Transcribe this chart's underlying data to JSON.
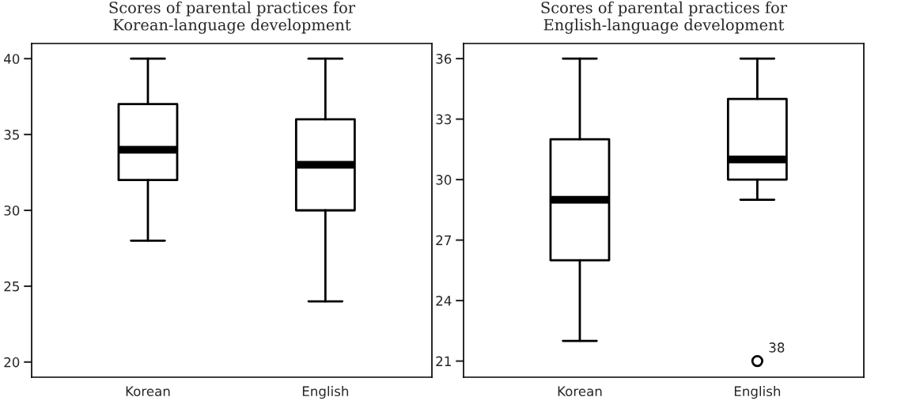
{
  "chart_data": [
    {
      "type": "box",
      "title": "Scores of parental practices for\nKorean-language development",
      "categories": [
        "Korean",
        "English"
      ],
      "boxes": [
        {
          "low": 28,
          "q1": 32,
          "median": 34,
          "q3": 37,
          "high": 40
        },
        {
          "low": 24,
          "q1": 30,
          "median": 33,
          "q3": 36,
          "high": 40
        }
      ],
      "ylim": [
        19,
        41
      ],
      "yticks": [
        20,
        25,
        30,
        35,
        40
      ],
      "grid": false,
      "legend": false
    },
    {
      "type": "box",
      "title": "Scores of parental practices for\nEnglish-language development",
      "categories": [
        "Korean",
        "English"
      ],
      "boxes": [
        {
          "low": 22,
          "q1": 26,
          "median": 29,
          "q3": 32,
          "high": 36
        },
        {
          "low": 29,
          "q1": 30,
          "median": 31,
          "q3": 34,
          "high": 36,
          "outliers": [
            21
          ]
        }
      ],
      "ylim": [
        20.2,
        36.75
      ],
      "yticks": [
        21,
        24,
        27,
        30,
        33,
        36
      ],
      "grid": false,
      "legend": false,
      "annotations": [
        "38"
      ]
    }
  ]
}
